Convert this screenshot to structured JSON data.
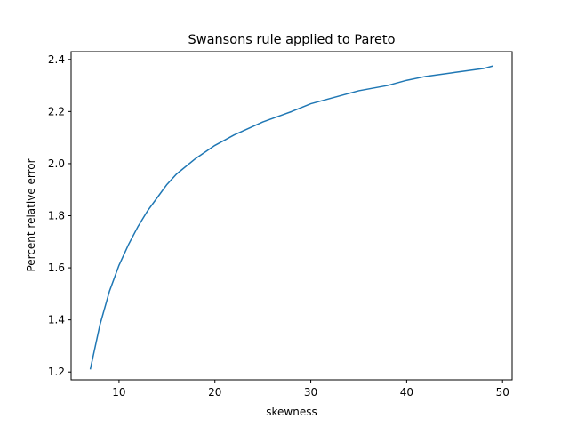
{
  "chart_data": {
    "type": "line",
    "title": "Swansons rule applied to Pareto",
    "xlabel": "skewness",
    "ylabel": "Percent relative error",
    "xlim": [
      5,
      51
    ],
    "ylim": [
      1.17,
      2.43
    ],
    "xticks": [
      10,
      20,
      30,
      40,
      50
    ],
    "yticks": [
      1.2,
      1.4,
      1.6,
      1.8,
      2.0,
      2.2,
      2.4
    ],
    "ytick_labels": [
      "1.2",
      "1.4",
      "1.6",
      "1.8",
      "2.0",
      "2.2",
      "2.4"
    ],
    "grid": false,
    "series": [
      {
        "color": "#1f77b4",
        "x": [
          7,
          8,
          9,
          10,
          11,
          12,
          13,
          14,
          15,
          16,
          18,
          20,
          22,
          25,
          28,
          30,
          32,
          35,
          38,
          40,
          42,
          45,
          48,
          49
        ],
        "y": [
          1.21,
          1.38,
          1.51,
          1.61,
          1.69,
          1.76,
          1.82,
          1.87,
          1.92,
          1.96,
          2.02,
          2.07,
          2.11,
          2.16,
          2.2,
          2.23,
          2.25,
          2.28,
          2.3,
          2.32,
          2.335,
          2.35,
          2.365,
          2.375
        ]
      }
    ]
  }
}
